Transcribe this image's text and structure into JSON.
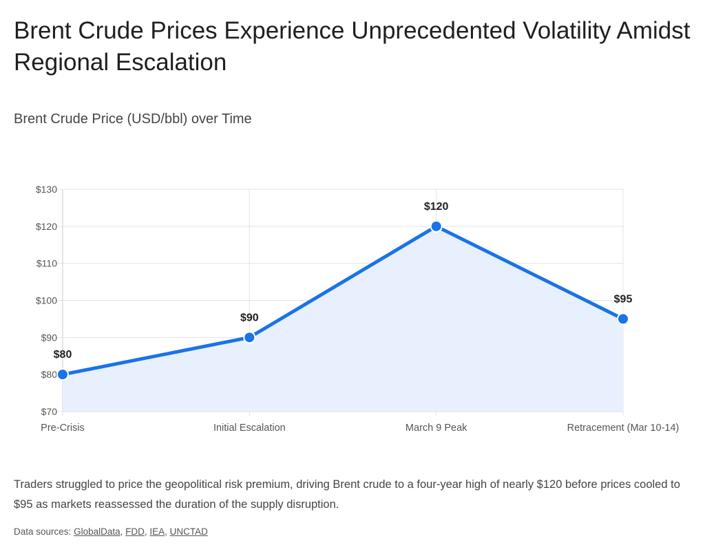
{
  "title": "Brent Crude Prices Experience Unprecedented Volatility Amidst Regional Escalation",
  "caption": "Traders struggled to price the geopolitical risk premium, driving Brent crude to a four-year high of nearly $120 before prices cooled to $95 as markets reassessed the duration of the supply disruption.",
  "sources": {
    "label": "Data sources:",
    "links": [
      "GlobalData",
      "FDD",
      "IEA",
      "UNCTAD"
    ]
  },
  "chart_data": {
    "type": "area",
    "title": "Brent Crude Price (USD/bbl) over Time",
    "categories": [
      "Pre-Crisis",
      "Initial Escalation",
      "March 9 Peak",
      "Retracement (Mar 10-14)"
    ],
    "values": [
      80,
      90,
      120,
      95
    ],
    "data_labels": [
      "$80",
      "$90",
      "$120",
      "$95"
    ],
    "ylim": [
      70,
      130
    ],
    "yticks": [
      "$70",
      "$80",
      "$90",
      "$100",
      "$110",
      "$120",
      "$130"
    ],
    "grid": true,
    "colors": {
      "line": "#1a73e8",
      "fill": "#e8f0fd"
    }
  }
}
